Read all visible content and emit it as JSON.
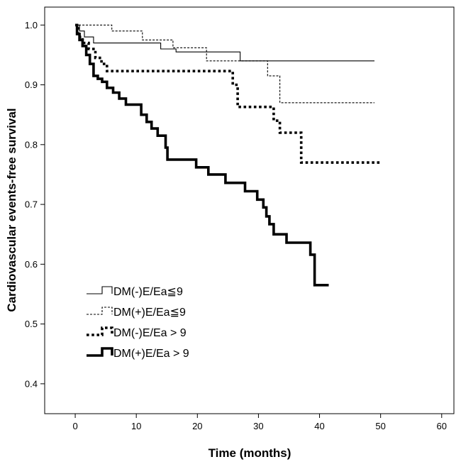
{
  "chart_data": {
    "type": "line",
    "subtype": "kaplan-meier-step",
    "xlabel": "Time (months)",
    "ylabel": "Cardiovascular events-free survival",
    "xlim": [
      -5,
      62
    ],
    "ylim": [
      0.35,
      1.03
    ],
    "xticks": [
      0,
      10,
      20,
      30,
      40,
      50,
      60
    ],
    "xtick_labels": [
      "0",
      "10",
      "20",
      "30",
      "40",
      "50",
      "60"
    ],
    "yticks": [
      0.4,
      0.5,
      0.6,
      0.7,
      0.8,
      0.9,
      1.0
    ],
    "ytick_labels": [
      "0.4",
      "0.5",
      "0.6",
      "0.7",
      "0.8",
      "0.9",
      "1.0"
    ],
    "legend_position": "lower-left",
    "series": [
      {
        "name": "DM(-)E/Ea≦9",
        "style": "thin-solid",
        "color": "#000000",
        "x": [
          0,
          0.7,
          1.5,
          3,
          4.5,
          14,
          16.5,
          27,
          49
        ],
        "y": [
          1.0,
          0.99,
          0.98,
          0.97,
          0.97,
          0.96,
          0.955,
          0.94,
          0.94
        ]
      },
      {
        "name": "DM(+)E/Ea≦9",
        "style": "thin-dashed",
        "color": "#000000",
        "x": [
          0,
          2.5,
          6,
          11,
          16,
          21.5,
          31.5,
          33.5,
          49
        ],
        "y": [
          1.0,
          1.0,
          0.99,
          0.975,
          0.962,
          0.94,
          0.915,
          0.87,
          0.87
        ]
      },
      {
        "name": "DM(-)E/Ea > 9",
        "style": "thick-dotted",
        "color": "#000000",
        "x": [
          0,
          0.5,
          1.2,
          2.2,
          3.3,
          4.3,
          5.2,
          25.8,
          26.6,
          32.5,
          33.5,
          37,
          50
        ],
        "y": [
          1.0,
          0.98,
          0.97,
          0.96,
          0.945,
          0.935,
          0.923,
          0.9,
          0.863,
          0.84,
          0.82,
          0.77,
          0.77
        ]
      },
      {
        "name": "DM(+)E/Ea > 9",
        "style": "thick-solid",
        "color": "#000000",
        "x": [
          0,
          0.3,
          0.7,
          1.2,
          1.8,
          2.4,
          3,
          3.7,
          4.4,
          5.2,
          6.2,
          7.2,
          8.3,
          10.8,
          11.7,
          12.5,
          13.5,
          14.8,
          15.1,
          19.8,
          21.8,
          24.6,
          27.8,
          29.8,
          30.8,
          31.3,
          31.8,
          32.5,
          34.6,
          38.5,
          39.2,
          41.5
        ],
        "y": [
          1.0,
          0.985,
          0.975,
          0.965,
          0.95,
          0.935,
          0.915,
          0.91,
          0.905,
          0.895,
          0.887,
          0.877,
          0.867,
          0.85,
          0.838,
          0.827,
          0.815,
          0.795,
          0.775,
          0.762,
          0.75,
          0.736,
          0.722,
          0.708,
          0.695,
          0.68,
          0.667,
          0.65,
          0.636,
          0.616,
          0.565,
          0.565
        ]
      }
    ]
  }
}
